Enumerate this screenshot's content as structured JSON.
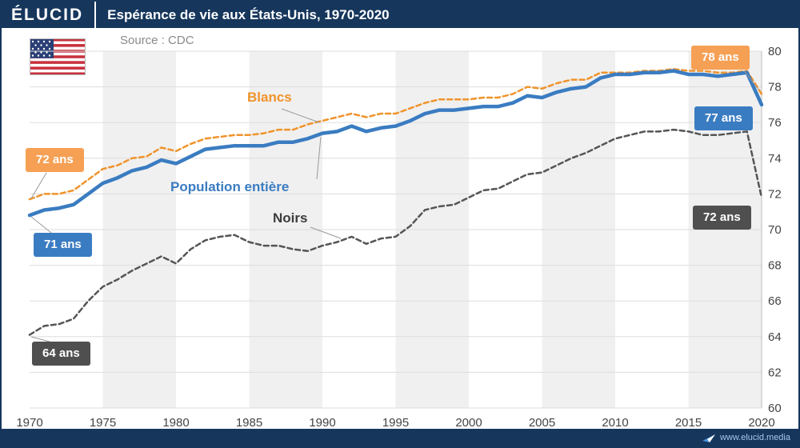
{
  "header": {
    "logo": "ÉLUCID",
    "title": "Espérance de vie aux États-Unis, 1970-2020"
  },
  "source": "Source : CDC",
  "footer": {
    "url": "www.elucid.media"
  },
  "annotations": {
    "blancs_label": "Blancs",
    "population_label": "Population entière",
    "noirs_label": "Noirs",
    "badges": {
      "blancs_start": "72 ans",
      "blancs_end": "78 ans",
      "pop_start": "71 ans",
      "pop_end": "77 ans",
      "noirs_start": "64 ans",
      "noirs_end": "72 ans"
    },
    "connectors": [
      [
        350,
        134,
        397,
        151
      ],
      [
        394,
        222,
        399,
        169
      ],
      [
        386,
        282,
        424,
        296
      ],
      [
        56,
        214,
        37,
        246
      ],
      [
        62,
        289,
        37,
        269
      ],
      [
        60,
        425,
        37,
        419
      ],
      [
        928,
        86,
        946,
        110
      ]
    ]
  },
  "colors": {
    "header_bg": "#16365c",
    "band": "#f0f0f0",
    "gridline": "#dddddd",
    "blancs": "#f0932b",
    "population": "#3a7cc1",
    "noirs": "#555555",
    "badge_orange": "#f5a054",
    "badge_blue": "#3a7cc1",
    "badge_dark": "#4f4f4f"
  },
  "chart_data": {
    "type": "line",
    "title": "Espérance de vie aux États-Unis, 1970-2020",
    "xlabel": "",
    "ylabel": "",
    "xlim": [
      1970,
      2020
    ],
    "ylim": [
      60,
      80
    ],
    "xticks": [
      1970,
      1975,
      1980,
      1985,
      1990,
      1995,
      2000,
      2005,
      2010,
      2015,
      2020
    ],
    "yticks": [
      60,
      62,
      64,
      66,
      68,
      70,
      72,
      74,
      76,
      78,
      80
    ],
    "grid": "horizontal",
    "legend_position": "inline-labels",
    "x": [
      1970,
      1971,
      1972,
      1973,
      1974,
      1975,
      1976,
      1977,
      1978,
      1979,
      1980,
      1981,
      1982,
      1983,
      1984,
      1985,
      1986,
      1987,
      1988,
      1989,
      1990,
      1991,
      1992,
      1993,
      1994,
      1995,
      1996,
      1997,
      1998,
      1999,
      2000,
      2001,
      2002,
      2003,
      2004,
      2005,
      2006,
      2007,
      2008,
      2009,
      2010,
      2011,
      2012,
      2013,
      2014,
      2015,
      2016,
      2017,
      2018,
      2019,
      2020
    ],
    "series": [
      {
        "id": "blancs",
        "name": "Blancs",
        "color": "#f0932b",
        "style": "dashed",
        "dash": "6 4",
        "width": 2.5,
        "values": [
          71.7,
          72.0,
          72.0,
          72.2,
          72.8,
          73.4,
          73.6,
          74.0,
          74.1,
          74.6,
          74.4,
          74.8,
          75.1,
          75.2,
          75.3,
          75.3,
          75.4,
          75.6,
          75.6,
          75.9,
          76.1,
          76.3,
          76.5,
          76.3,
          76.5,
          76.5,
          76.8,
          77.1,
          77.3,
          77.3,
          77.3,
          77.4,
          77.4,
          77.6,
          78.0,
          77.9,
          78.2,
          78.4,
          78.4,
          78.8,
          78.8,
          78.8,
          78.9,
          78.9,
          79.0,
          78.9,
          78.9,
          78.8,
          78.8,
          78.9,
          77.6
        ]
      },
      {
        "id": "noirs",
        "name": "Noirs",
        "color": "#555555",
        "style": "dashed",
        "dash": "6 4",
        "width": 2.5,
        "values": [
          64.1,
          64.6,
          64.7,
          65.0,
          66.0,
          66.8,
          67.2,
          67.7,
          68.1,
          68.5,
          68.1,
          68.9,
          69.4,
          69.6,
          69.7,
          69.3,
          69.1,
          69.1,
          68.9,
          68.8,
          69.1,
          69.3,
          69.6,
          69.2,
          69.5,
          69.6,
          70.2,
          71.1,
          71.3,
          71.4,
          71.8,
          72.2,
          72.3,
          72.7,
          73.1,
          73.2,
          73.6,
          74.0,
          74.3,
          74.7,
          75.1,
          75.3,
          75.5,
          75.5,
          75.6,
          75.5,
          75.3,
          75.3,
          75.4,
          75.5,
          71.8
        ]
      },
      {
        "id": "population",
        "name": "Population entière",
        "color": "#3a7cc1",
        "style": "solid",
        "dash": "",
        "width": 4.5,
        "values": [
          70.8,
          71.1,
          71.2,
          71.4,
          72.0,
          72.6,
          72.9,
          73.3,
          73.5,
          73.9,
          73.7,
          74.1,
          74.5,
          74.6,
          74.7,
          74.7,
          74.7,
          74.9,
          74.9,
          75.1,
          75.4,
          75.5,
          75.8,
          75.5,
          75.7,
          75.8,
          76.1,
          76.5,
          76.7,
          76.7,
          76.8,
          76.9,
          76.9,
          77.1,
          77.5,
          77.4,
          77.7,
          77.9,
          78.0,
          78.5,
          78.7,
          78.7,
          78.8,
          78.8,
          78.9,
          78.7,
          78.7,
          78.6,
          78.7,
          78.8,
          77.0
        ]
      }
    ]
  }
}
